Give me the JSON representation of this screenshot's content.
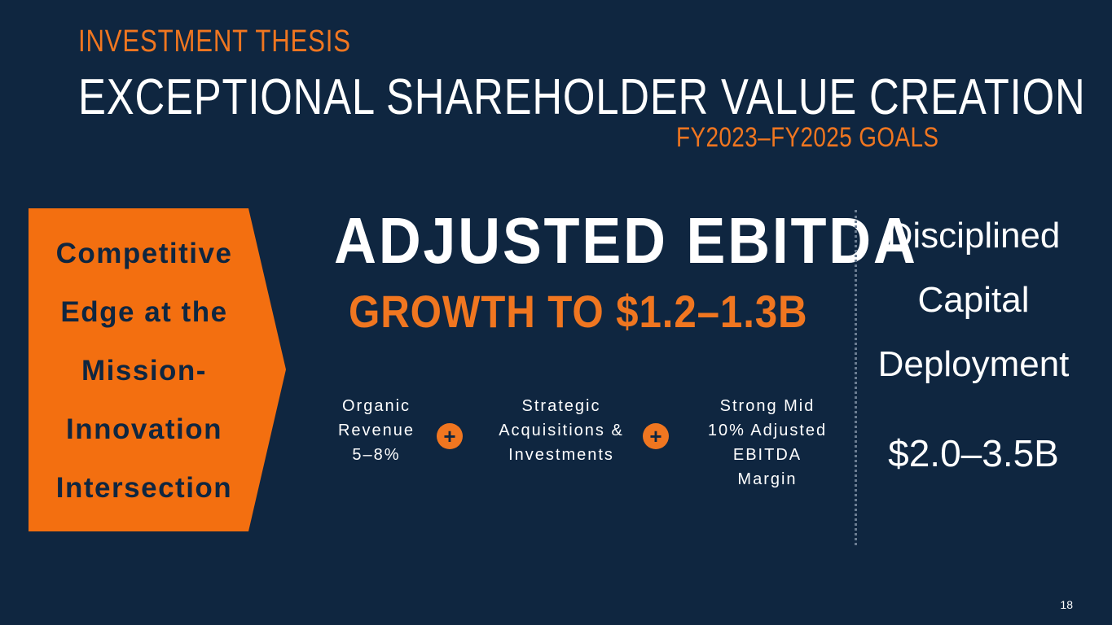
{
  "header": {
    "eyebrow": "INVESTMENT THESIS",
    "title": "EXCEPTIONAL SHAREHOLDER VALUE CREATION",
    "goals": "FY2023–FY2025 GOALS"
  },
  "arrow": {
    "lines": [
      "Competitive",
      "Edge at the",
      "Mission-",
      "Innovation",
      "Intersection"
    ],
    "color": "#f36f10"
  },
  "ebitda": {
    "heading": "ADJUSTED EBITDA",
    "subheading": "GROWTH TO $1.2–1.3B"
  },
  "drivers": [
    {
      "text": "Organic\nRevenue\n5–8%"
    },
    {
      "text": "Strategic\nAcquisitions &\nInvestments"
    },
    {
      "text": "Strong Mid\n10% Adjusted EBITDA\nMargin"
    }
  ],
  "plus_symbol": "+",
  "capital": {
    "lines": [
      "Disciplined",
      "Capital",
      "Deployment"
    ],
    "amount": "$2.0–3.5B"
  },
  "page_number": "18",
  "colors": {
    "background": "#0f2640",
    "accent": "#f07620"
  }
}
